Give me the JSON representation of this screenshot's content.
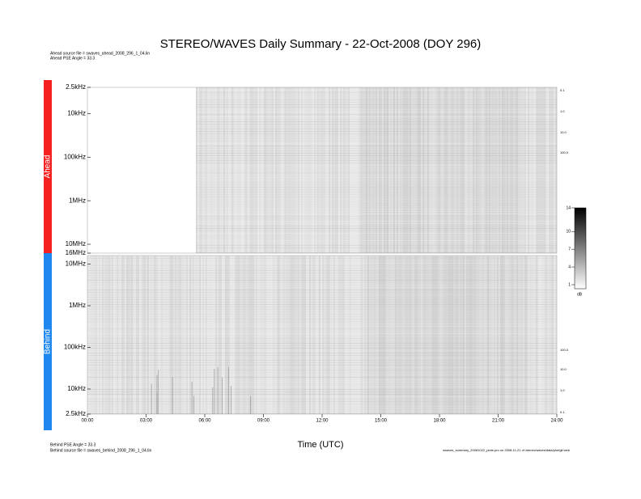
{
  "chart_data": {
    "type": "spectrogram",
    "title": "STEREO/WAVES Daily Summary - 22-Oct-2008 (DOY 296)",
    "header_notes": [
      "Ahead source file = swaves_ahead_2008_296_1_04.lin",
      "Ahead PSE Angle = 33.3"
    ],
    "footer_notes": [
      "Behind PSE Angle = 33.3",
      "Behind source file = swaves_behind_2008_296_1_04.lin"
    ],
    "footer_right": "swaves_summary_20081022_plots.pro on 2008-11-21 of /stereo/waves/data/plot/gif.web",
    "x_label": "Time (UTC)",
    "xlim": [
      0,
      24
    ],
    "xticks": [
      {
        "value": 0,
        "label": "00:00"
      },
      {
        "value": 3,
        "label": "03:00"
      },
      {
        "value": 6,
        "label": "06:00"
      },
      {
        "value": 9,
        "label": "09:00"
      },
      {
        "value": 12,
        "label": "12:00"
      },
      {
        "value": 15,
        "label": "15:00"
      },
      {
        "value": 18,
        "label": "18:00"
      },
      {
        "value": 21,
        "label": "21:00"
      },
      {
        "value": 24,
        "label": "24:00"
      }
    ],
    "panels": [
      {
        "name": "Ahead",
        "color": "#f52020",
        "log_y": true,
        "ylim": [
          2500,
          16000000
        ],
        "inverted": false,
        "yticks": [
          {
            "value": 2500,
            "label": "2.5kHz"
          },
          {
            "value": 10000,
            "label": "10kHz"
          },
          {
            "value": 100000,
            "label": "100kHz"
          },
          {
            "value": 1000000,
            "label": "1MHz"
          },
          {
            "value": 10000000,
            "label": "10MHz"
          },
          {
            "value": 16000000,
            "label": "16MHz"
          }
        ],
        "right_labels": [
          "0.1",
          "1.0",
          "10.0",
          "100.0"
        ]
      },
      {
        "name": "Behind",
        "color": "#1e88f0",
        "log_y": true,
        "ylim": [
          2500,
          16000000
        ],
        "inverted": true,
        "yticks": [
          {
            "value": 10000000,
            "label": "10MHz"
          },
          {
            "value": 1000000,
            "label": "1MHz"
          },
          {
            "value": 100000,
            "label": "100kHz"
          },
          {
            "value": 10000,
            "label": "10kHz"
          },
          {
            "value": 2500,
            "label": "2.5kHz"
          }
        ],
        "right_labels": [
          "100.0",
          "10.0",
          "1.0",
          "0.1"
        ]
      }
    ],
    "colorbar": {
      "unit": "dB",
      "lim": [
        1,
        14
      ],
      "ticks": [
        1,
        4,
        7,
        10,
        14
      ]
    }
  }
}
